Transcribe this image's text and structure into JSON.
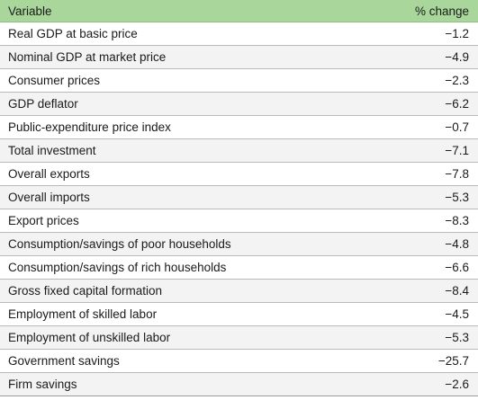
{
  "table": {
    "header": {
      "variable": "Variable",
      "change": "% change"
    },
    "rows": [
      {
        "variable": "Real GDP at basic price",
        "change": "−1.2"
      },
      {
        "variable": "Nominal GDP at market price",
        "change": "−4.9"
      },
      {
        "variable": "Consumer prices",
        "change": "−2.3"
      },
      {
        "variable": "GDP deflator",
        "change": "−6.2"
      },
      {
        "variable": "Public-expenditure price index",
        "change": "−0.7"
      },
      {
        "variable": "Total investment",
        "change": "−7.1"
      },
      {
        "variable": "Overall exports",
        "change": "−7.8"
      },
      {
        "variable": "Overall imports",
        "change": "−5.3"
      },
      {
        "variable": "Export prices",
        "change": "−8.3"
      },
      {
        "variable": "Consumption/savings of poor households",
        "change": "−4.8"
      },
      {
        "variable": "Consumption/savings of rich households",
        "change": "−6.6"
      },
      {
        "variable": "Gross fixed capital formation",
        "change": "−8.4"
      },
      {
        "variable": "Employment of skilled labor",
        "change": "−4.5"
      },
      {
        "variable": "Employment of unskilled labor",
        "change": "−5.3"
      },
      {
        "variable": "Government savings",
        "change": "−25.7"
      },
      {
        "variable": "Firm savings",
        "change": "−2.6"
      }
    ]
  },
  "colors": {
    "header_bg": "#a9d79b",
    "stripe_bg": "#f3f3f3"
  }
}
